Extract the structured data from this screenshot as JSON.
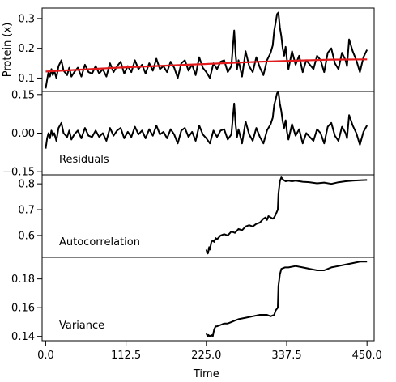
{
  "chart_data": [
    {
      "type": "line",
      "ylabel": "Protein (x)",
      "xlim": [
        -5,
        460
      ],
      "ylim": [
        0.055,
        0.335
      ],
      "yticks": [
        "0.1",
        "0.2",
        "0.3"
      ],
      "ytick_values": [
        0.1,
        0.2,
        0.3
      ],
      "series": [
        {
          "color": "#000000",
          "x": [
            0,
            2,
            4,
            6,
            8,
            10,
            12,
            15,
            18,
            22,
            25,
            30,
            33,
            36,
            40,
            45,
            50,
            55,
            60,
            65,
            70,
            75,
            80,
            85,
            90,
            95,
            100,
            105,
            110,
            115,
            120,
            125,
            130,
            135,
            140,
            145,
            150,
            155,
            160,
            165,
            170,
            175,
            180,
            185,
            190,
            195,
            200,
            205,
            210,
            215,
            220,
            225,
            230,
            235,
            240,
            245,
            250,
            255,
            260,
            262,
            264,
            266,
            268,
            270,
            275,
            280,
            285,
            290,
            295,
            300,
            305,
            310,
            315,
            318,
            320,
            322,
            324,
            326,
            328,
            330,
            332,
            334,
            336,
            338,
            340,
            345,
            350,
            355,
            360,
            365,
            370,
            375,
            380,
            385,
            390,
            395,
            400,
            405,
            410,
            415,
            420,
            422,
            425,
            430,
            435,
            440,
            445,
            450
          ],
          "values": [
            0.065,
            0.095,
            0.12,
            0.105,
            0.13,
            0.11,
            0.125,
            0.1,
            0.14,
            0.16,
            0.125,
            0.11,
            0.135,
            0.105,
            0.12,
            0.135,
            0.105,
            0.145,
            0.12,
            0.115,
            0.14,
            0.115,
            0.13,
            0.105,
            0.15,
            0.12,
            0.14,
            0.155,
            0.115,
            0.14,
            0.12,
            0.16,
            0.13,
            0.145,
            0.115,
            0.15,
            0.125,
            0.165,
            0.13,
            0.14,
            0.12,
            0.155,
            0.135,
            0.1,
            0.15,
            0.16,
            0.125,
            0.145,
            0.11,
            0.17,
            0.135,
            0.12,
            0.1,
            0.15,
            0.13,
            0.155,
            0.16,
            0.12,
            0.14,
            0.2,
            0.26,
            0.18,
            0.13,
            0.16,
            0.105,
            0.19,
            0.14,
            0.12,
            0.17,
            0.135,
            0.11,
            0.16,
            0.185,
            0.21,
            0.26,
            0.285,
            0.315,
            0.32,
            0.27,
            0.24,
            0.2,
            0.175,
            0.205,
            0.16,
            0.13,
            0.19,
            0.145,
            0.175,
            0.12,
            0.16,
            0.145,
            0.13,
            0.175,
            0.16,
            0.12,
            0.185,
            0.2,
            0.15,
            0.13,
            0.185,
            0.16,
            0.14,
            0.23,
            0.19,
            0.16,
            0.12,
            0.17,
            0.195
          ]
        },
        {
          "color": "#e31a1c",
          "x": [
            0,
            100,
            200,
            300,
            400,
            450
          ],
          "values": [
            0.122,
            0.135,
            0.145,
            0.155,
            0.162,
            0.163
          ]
        }
      ]
    },
    {
      "type": "line",
      "label": "Residuals",
      "xlim": [
        -5,
        460
      ],
      "ylim": [
        -0.162,
        0.162
      ],
      "yticks": [
        "0.15",
        "0.00",
        "−0.15"
      ],
      "ytick_values": [
        0.15,
        0.0,
        -0.15
      ],
      "series": [
        {
          "color": "#000000",
          "x": [
            0,
            2,
            4,
            6,
            8,
            10,
            12,
            15,
            18,
            22,
            25,
            30,
            33,
            36,
            40,
            45,
            50,
            55,
            60,
            65,
            70,
            75,
            80,
            85,
            90,
            95,
            100,
            105,
            110,
            115,
            120,
            125,
            130,
            135,
            140,
            145,
            150,
            155,
            160,
            165,
            170,
            175,
            180,
            185,
            190,
            195,
            200,
            205,
            210,
            215,
            220,
            225,
            230,
            235,
            240,
            245,
            250,
            255,
            260,
            262,
            264,
            266,
            268,
            270,
            275,
            280,
            285,
            290,
            295,
            300,
            305,
            310,
            315,
            318,
            320,
            322,
            324,
            326,
            328,
            330,
            332,
            334,
            336,
            338,
            340,
            345,
            350,
            355,
            360,
            365,
            370,
            375,
            380,
            385,
            390,
            395,
            400,
            405,
            410,
            415,
            420,
            422,
            425,
            430,
            435,
            440,
            445,
            450
          ],
          "values": [
            -0.06,
            -0.02,
            0.0,
            -0.02,
            0.01,
            -0.01,
            0.0,
            -0.03,
            0.02,
            0.04,
            0.0,
            -0.015,
            0.01,
            -0.025,
            -0.005,
            0.01,
            -0.02,
            0.02,
            -0.01,
            -0.015,
            0.01,
            -0.015,
            0.0,
            -0.03,
            0.02,
            -0.01,
            0.01,
            0.02,
            -0.02,
            0.005,
            -0.015,
            0.025,
            -0.005,
            0.01,
            -0.02,
            0.015,
            -0.01,
            0.03,
            -0.005,
            0.005,
            -0.02,
            0.015,
            -0.005,
            -0.04,
            0.01,
            0.02,
            -0.015,
            0.005,
            -0.03,
            0.03,
            -0.005,
            -0.02,
            -0.04,
            0.01,
            -0.015,
            0.01,
            0.015,
            -0.025,
            -0.005,
            0.055,
            0.115,
            0.035,
            -0.015,
            0.015,
            -0.04,
            0.045,
            -0.005,
            -0.03,
            0.02,
            -0.015,
            -0.04,
            0.01,
            0.035,
            0.06,
            0.11,
            0.13,
            0.155,
            0.16,
            0.115,
            0.085,
            0.045,
            0.02,
            0.05,
            0.005,
            -0.025,
            0.035,
            -0.01,
            0.015,
            -0.04,
            0.0,
            -0.015,
            -0.03,
            0.015,
            0.0,
            -0.04,
            0.025,
            0.04,
            -0.01,
            -0.03,
            0.025,
            0.0,
            -0.02,
            0.07,
            0.03,
            0.0,
            -0.045,
            0.005,
            0.03
          ]
        }
      ]
    },
    {
      "type": "line",
      "label": "Autocorrelation",
      "xlim": [
        -5,
        460
      ],
      "ylim": [
        0.515,
        0.835
      ],
      "yticks": [
        "0.8",
        "0.7",
        "0.6"
      ],
      "ytick_values": [
        0.8,
        0.7,
        0.6
      ],
      "series": [
        {
          "color": "#000000",
          "x": [
            225,
            226,
            227,
            228,
            229,
            230,
            231,
            232,
            234,
            236,
            238,
            240,
            245,
            250,
            255,
            260,
            265,
            270,
            275,
            280,
            285,
            290,
            295,
            300,
            305,
            308,
            310,
            312,
            315,
            318,
            320,
            322,
            325,
            326,
            328,
            330,
            333,
            336,
            340,
            345,
            350,
            360,
            370,
            380,
            390,
            400,
            410,
            420,
            430,
            440,
            450
          ],
          "values": [
            0.545,
            0.535,
            0.53,
            0.54,
            0.555,
            0.545,
            0.56,
            0.575,
            0.58,
            0.575,
            0.59,
            0.585,
            0.6,
            0.605,
            0.6,
            0.615,
            0.61,
            0.625,
            0.62,
            0.635,
            0.64,
            0.635,
            0.645,
            0.65,
            0.665,
            0.67,
            0.66,
            0.675,
            0.67,
            0.665,
            0.67,
            0.68,
            0.7,
            0.76,
            0.81,
            0.825,
            0.815,
            0.81,
            0.812,
            0.81,
            0.812,
            0.808,
            0.806,
            0.802,
            0.805,
            0.8,
            0.806,
            0.81,
            0.812,
            0.814,
            0.815
          ]
        }
      ]
    },
    {
      "type": "line",
      "label": "Variance",
      "xlim": [
        -5,
        460
      ],
      "ylim": [
        0.137,
        0.195
      ],
      "yticks": [
        "0.18",
        "0.16",
        "0.14"
      ],
      "ytick_values": [
        0.18,
        0.16,
        0.14
      ],
      "xticks": [
        "0.0",
        "112.5",
        "225.0",
        "337.5",
        "450.0"
      ],
      "xtick_values": [
        0,
        112.5,
        225,
        337.5,
        450
      ],
      "xlabel": "Time",
      "series": [
        {
          "color": "#000000",
          "x": [
            225,
            227,
            228,
            230,
            232,
            234,
            236,
            238,
            240,
            245,
            250,
            255,
            260,
            265,
            270,
            280,
            290,
            300,
            310,
            315,
            320,
            322,
            325,
            326,
            328,
            330,
            335,
            340,
            350,
            360,
            370,
            380,
            390,
            400,
            410,
            420,
            430,
            440,
            450
          ],
          "values": [
            0.142,
            0.14,
            0.141,
            0.14,
            0.141,
            0.14,
            0.145,
            0.147,
            0.147,
            0.148,
            0.149,
            0.149,
            0.15,
            0.151,
            0.152,
            0.153,
            0.154,
            0.155,
            0.155,
            0.154,
            0.155,
            0.158,
            0.16,
            0.175,
            0.183,
            0.187,
            0.188,
            0.188,
            0.189,
            0.188,
            0.187,
            0.186,
            0.186,
            0.188,
            0.189,
            0.19,
            0.191,
            0.192,
            0.192
          ]
        }
      ]
    }
  ]
}
